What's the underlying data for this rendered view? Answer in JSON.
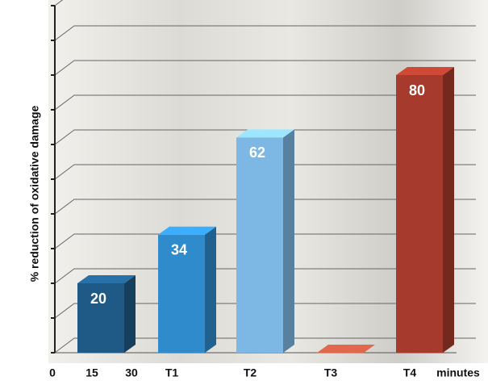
{
  "chart_data": {
    "type": "bar3d",
    "y_label": "% reduction of oxidative damage",
    "x_label": "minutes",
    "xlim": [
      0,
      30
    ],
    "xticks": [
      0,
      15,
      30
    ],
    "categories": [
      null,
      "T1",
      "T2",
      "T3",
      "T4"
    ],
    "values": [
      20,
      34,
      62,
      0,
      80
    ],
    "colors": [
      "#1f5a86",
      "#2f8bcc",
      "#7db8e4",
      "#b5533d",
      "#a63a2c"
    ],
    "ylim": [
      0,
      100
    ],
    "yticks": [
      0,
      10,
      20,
      30,
      40,
      50,
      60,
      70,
      80,
      90,
      100
    ],
    "grid": true
  }
}
